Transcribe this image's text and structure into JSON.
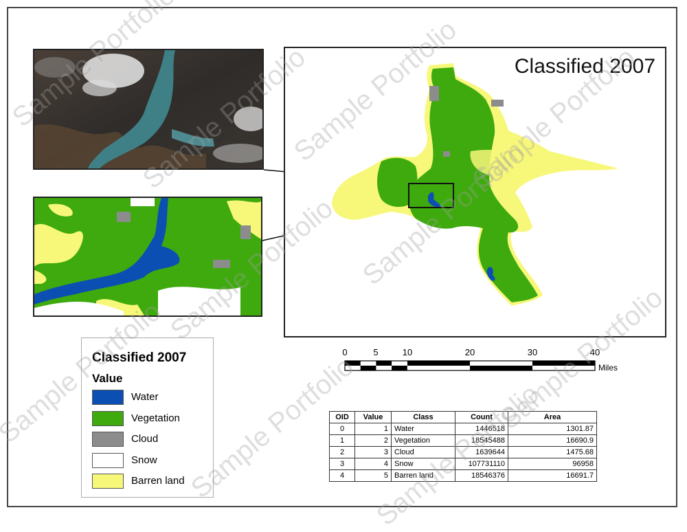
{
  "map": {
    "title": "Classified 2007"
  },
  "legend": {
    "title": "Classified 2007",
    "subtitle": "Value",
    "items": [
      {
        "label": "Water",
        "color": "#0b4fb3"
      },
      {
        "label": "Vegetation",
        "color": "#3eaa0d"
      },
      {
        "label": "Cloud",
        "color": "#8c8c8c"
      },
      {
        "label": "Snow",
        "color": "#ffffff"
      },
      {
        "label": "Barren land",
        "color": "#f7f77a"
      }
    ]
  },
  "scale": {
    "ticks": [
      "0",
      "5",
      "10",
      "20",
      "30",
      "40"
    ],
    "units": "Miles"
  },
  "table": {
    "headers": [
      "OID",
      "Value",
      "Class",
      "Count",
      "Area"
    ],
    "rows": [
      [
        "0",
        "1",
        "Water",
        "1446518",
        "1301.87"
      ],
      [
        "1",
        "2",
        "Vegetation",
        "18545488",
        "16690.9"
      ],
      [
        "2",
        "3",
        "Cloud",
        "1639644",
        "1475.68"
      ],
      [
        "3",
        "4",
        "Snow",
        "107731110",
        "96958"
      ],
      [
        "4",
        "5",
        "Barren land",
        "18546376",
        "16691.7"
      ]
    ]
  },
  "watermark": "Sample Portfolio"
}
